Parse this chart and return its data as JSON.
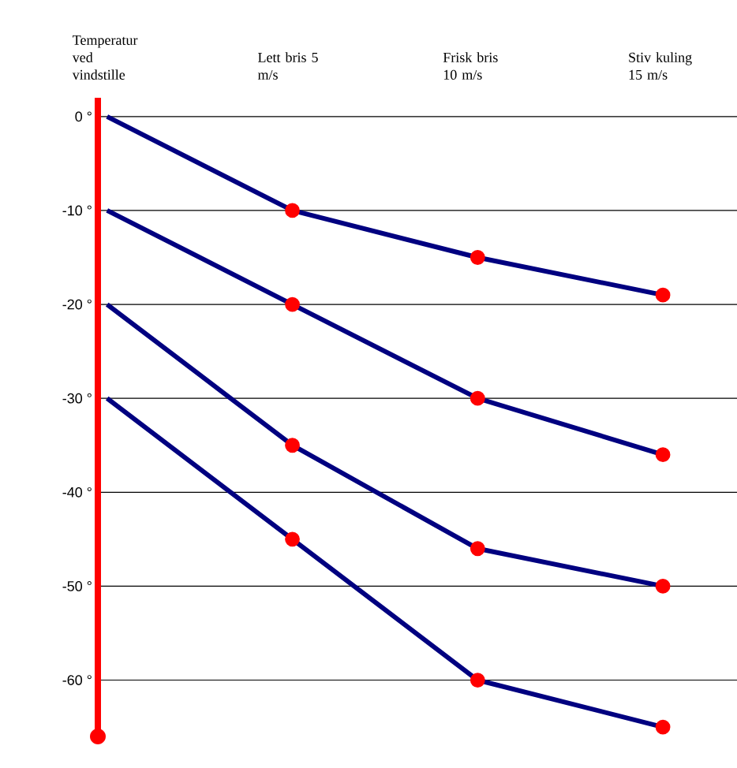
{
  "chart_data": {
    "type": "line",
    "categories": [
      "Temperatur ved vindstille",
      "Lett bris 5 m/s",
      "Frisk bris 10 m/s",
      "Stiv kuling 15 m/s"
    ],
    "series": [
      {
        "color": "#000080",
        "values": [
          0,
          -10,
          -15,
          -19
        ]
      },
      {
        "color": "#000080",
        "values": [
          -10,
          -20,
          -30,
          -36
        ]
      },
      {
        "color": "#000080",
        "values": [
          -20,
          -35,
          -46,
          -50
        ]
      },
      {
        "color": "#000080",
        "values": [
          -30,
          -45,
          -60,
          -65
        ]
      }
    ],
    "ylim": [
      -66,
      2
    ],
    "yticks": [
      {
        "value": 0,
        "label": "0 °"
      },
      {
        "value": -10,
        "label": "-10 °"
      },
      {
        "value": -20,
        "label": "-20 °"
      },
      {
        "value": -30,
        "label": "-30 °"
      },
      {
        "value": -40,
        "label": "-40 °"
      },
      {
        "value": -50,
        "label": "-50 °"
      },
      {
        "value": -60,
        "label": "-60 °"
      }
    ],
    "grid": "y",
    "marker": "circle",
    "line_style": "solid"
  }
}
